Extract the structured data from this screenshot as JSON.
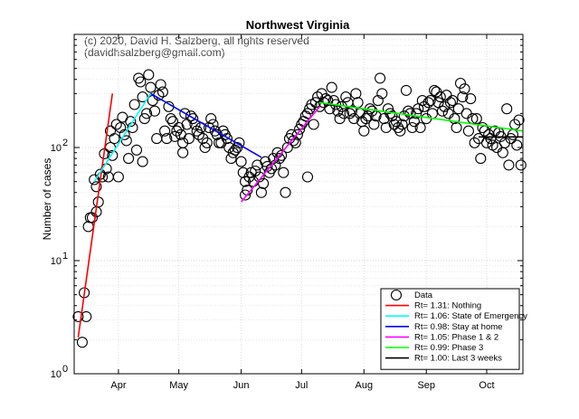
{
  "chart_data": {
    "type": "scatter",
    "title": "Northwest Virginia",
    "copyright": [
      "(c) 2020, David H. Salzberg, all rights reserved",
      "(davidhsalzberg@gmail.com)"
    ],
    "xlabel": "",
    "ylabel": "Number of cases",
    "yscale": "log",
    "ylim": [
      1,
      1000
    ],
    "xlim_day": [
      0,
      223
    ],
    "x_unit": "days since 2020-03-10",
    "grid": true,
    "legend_position": "bottom-right",
    "x_ticks": [
      {
        "day": 22,
        "label": "Apr"
      },
      {
        "day": 52,
        "label": "May"
      },
      {
        "day": 83,
        "label": "Jun"
      },
      {
        "day": 113,
        "label": "Jul"
      },
      {
        "day": 144,
        "label": "Aug"
      },
      {
        "day": 175,
        "label": "Sep"
      },
      {
        "day": 205,
        "label": "Oct"
      }
    ],
    "y_ticks": [
      {
        "value": 1,
        "label": "10",
        "exp": "0"
      },
      {
        "value": 10,
        "label": "10",
        "exp": "1"
      },
      {
        "value": 100,
        "label": "10",
        "exp": "2"
      }
    ],
    "data_label": "Data",
    "data_points": [
      [
        2,
        3.2
      ],
      [
        4,
        1.9
      ],
      [
        5,
        5.2
      ],
      [
        6,
        3.2
      ],
      [
        7,
        20
      ],
      [
        8,
        24
      ],
      [
        9,
        24
      ],
      [
        10,
        52
      ],
      [
        11,
        27
      ],
      [
        11,
        45
      ],
      [
        12,
        33
      ],
      [
        13,
        58
      ],
      [
        14,
        55
      ],
      [
        15,
        88
      ],
      [
        16,
        65
      ],
      [
        17,
        55
      ],
      [
        18,
        100
      ],
      [
        18,
        140
      ],
      [
        19,
        85
      ],
      [
        20,
        120
      ],
      [
        21,
        160
      ],
      [
        22,
        55
      ],
      [
        23,
        150
      ],
      [
        24,
        185
      ],
      [
        25,
        130
      ],
      [
        26,
        115
      ],
      [
        27,
        80
      ],
      [
        28,
        170
      ],
      [
        29,
        150
      ],
      [
        30,
        240
      ],
      [
        31,
        95
      ],
      [
        32,
        410
      ],
      [
        33,
        380
      ],
      [
        34,
        280
      ],
      [
        34,
        75
      ],
      [
        35,
        180
      ],
      [
        36,
        200
      ],
      [
        37,
        440
      ],
      [
        38,
        340
      ],
      [
        39,
        260
      ],
      [
        40,
        210
      ],
      [
        41,
        120
      ],
      [
        42,
        290
      ],
      [
        43,
        360
      ],
      [
        44,
        310
      ],
      [
        45,
        140
      ],
      [
        46,
        120
      ],
      [
        47,
        230
      ],
      [
        48,
        180
      ],
      [
        49,
        170
      ],
      [
        50,
        125
      ],
      [
        51,
        140
      ],
      [
        52,
        150
      ],
      [
        53,
        130
      ],
      [
        54,
        110
      ],
      [
        54,
        90
      ],
      [
        55,
        200
      ],
      [
        56,
        160
      ],
      [
        57,
        120
      ],
      [
        58,
        190
      ],
      [
        59,
        180
      ],
      [
        60,
        160
      ],
      [
        61,
        140
      ],
      [
        62,
        130
      ],
      [
        63,
        150
      ],
      [
        64,
        120
      ],
      [
        65,
        100
      ],
      [
        66,
        110
      ],
      [
        67,
        150
      ],
      [
        68,
        180
      ],
      [
        69,
        160
      ],
      [
        70,
        140
      ],
      [
        71,
        130
      ],
      [
        72,
        110
      ],
      [
        73,
        110
      ],
      [
        74,
        140
      ],
      [
        75,
        130
      ],
      [
        76,
        120
      ],
      [
        77,
        100
      ],
      [
        78,
        80
      ],
      [
        79,
        90
      ],
      [
        80,
        95
      ],
      [
        81,
        100
      ],
      [
        82,
        110
      ],
      [
        83,
        75
      ],
      [
        84,
        60
      ],
      [
        85,
        50
      ],
      [
        85,
        38
      ],
      [
        86,
        42
      ],
      [
        87,
        55
      ],
      [
        88,
        60
      ],
      [
        89,
        50
      ],
      [
        90,
        62
      ],
      [
        91,
        70
      ],
      [
        92,
        55
      ],
      [
        93,
        40
      ],
      [
        94,
        48
      ],
      [
        95,
        75
      ],
      [
        96,
        68
      ],
      [
        97,
        60
      ],
      [
        98,
        65
      ],
      [
        99,
        80
      ],
      [
        100,
        70
      ],
      [
        101,
        90
      ],
      [
        102,
        80
      ],
      [
        103,
        85
      ],
      [
        104,
        60
      ],
      [
        105,
        40
      ],
      [
        106,
        100
      ],
      [
        107,
        120
      ],
      [
        108,
        130
      ],
      [
        109,
        115
      ],
      [
        110,
        110
      ],
      [
        111,
        130
      ],
      [
        112,
        145
      ],
      [
        113,
        160
      ],
      [
        114,
        170
      ],
      [
        115,
        190
      ],
      [
        116,
        200
      ],
      [
        116,
        55
      ],
      [
        117,
        220
      ],
      [
        118,
        240
      ],
      [
        119,
        160
      ],
      [
        120,
        250
      ],
      [
        121,
        280
      ],
      [
        122,
        230
      ],
      [
        123,
        300
      ],
      [
        124,
        250
      ],
      [
        125,
        270
      ],
      [
        126,
        260
      ],
      [
        127,
        220
      ],
      [
        128,
        340
      ],
      [
        129,
        260
      ],
      [
        130,
        240
      ],
      [
        131,
        210
      ],
      [
        132,
        180
      ],
      [
        133,
        230
      ],
      [
        134,
        200
      ],
      [
        135,
        280
      ],
      [
        136,
        250
      ],
      [
        137,
        200
      ],
      [
        138,
        210
      ],
      [
        139,
        180
      ],
      [
        140,
        300
      ],
      [
        141,
        250
      ],
      [
        142,
        200
      ],
      [
        143,
        170
      ],
      [
        144,
        140
      ],
      [
        145,
        180
      ],
      [
        146,
        190
      ],
      [
        147,
        220
      ],
      [
        148,
        210
      ],
      [
        149,
        160
      ],
      [
        150,
        190
      ],
      [
        151,
        260
      ],
      [
        152,
        410
      ],
      [
        153,
        300
      ],
      [
        154,
        180
      ],
      [
        155,
        150
      ],
      [
        156,
        220
      ],
      [
        157,
        200
      ],
      [
        158,
        190
      ],
      [
        159,
        160
      ],
      [
        160,
        170
      ],
      [
        161,
        150
      ],
      [
        162,
        140
      ],
      [
        163,
        160
      ],
      [
        164,
        190
      ],
      [
        165,
        320
      ],
      [
        166,
        210
      ],
      [
        167,
        200
      ],
      [
        168,
        150
      ],
      [
        169,
        170
      ],
      [
        170,
        200
      ],
      [
        171,
        220
      ],
      [
        172,
        150
      ],
      [
        173,
        260
      ],
      [
        174,
        230
      ],
      [
        175,
        180
      ],
      [
        176,
        250
      ],
      [
        177,
        260
      ],
      [
        178,
        200
      ],
      [
        179,
        320
      ],
      [
        180,
        310
      ],
      [
        181,
        250
      ],
      [
        182,
        280
      ],
      [
        183,
        210
      ],
      [
        184,
        230
      ],
      [
        185,
        290
      ],
      [
        186,
        200
      ],
      [
        187,
        250
      ],
      [
        188,
        260
      ],
      [
        189,
        180
      ],
      [
        190,
        150
      ],
      [
        191,
        220
      ],
      [
        192,
        370
      ],
      [
        193,
        280
      ],
      [
        194,
        330
      ],
      [
        195,
        200
      ],
      [
        196,
        140
      ],
      [
        197,
        270
      ],
      [
        198,
        180
      ],
      [
        199,
        110
      ],
      [
        200,
        180
      ],
      [
        201,
        120
      ],
      [
        202,
        80
      ],
      [
        203,
        150
      ],
      [
        204,
        140
      ],
      [
        205,
        110
      ],
      [
        206,
        130
      ],
      [
        207,
        120
      ],
      [
        208,
        105
      ],
      [
        209,
        140
      ],
      [
        210,
        100
      ],
      [
        211,
        135
      ],
      [
        212,
        125
      ],
      [
        213,
        90
      ],
      [
        214,
        110
      ],
      [
        215,
        220
      ],
      [
        216,
        70
      ],
      [
        217,
        120
      ],
      [
        218,
        130
      ],
      [
        219,
        160
      ],
      [
        220,
        105
      ],
      [
        221,
        175
      ],
      [
        222,
        70
      ]
    ],
    "fits": [
      {
        "label": "Rt= 1.31: Nothing",
        "color": "#ff0000",
        "x": [
          2,
          19
        ],
        "y": [
          2.1,
          300
        ]
      },
      {
        "label": "Rt= 1.06: State of Emergency",
        "color": "#00ffff",
        "x": [
          10,
          38
        ],
        "y": [
          50,
          300
        ]
      },
      {
        "label": "Rt= 0.98: Stay at home",
        "color": "#0000ff",
        "x": [
          38,
          93
        ],
        "y": [
          300,
          82
        ]
      },
      {
        "label": "Rt= 1.05: Phase 1 & 2",
        "color": "#ff00ff",
        "x": [
          83,
          122
        ],
        "y": [
          33,
          230
        ]
      },
      {
        "label": "Rt= 0.99: Phase 3",
        "color": "#00ff00",
        "x": [
          122,
          223
        ],
        "y": [
          250,
          140
        ]
      },
      {
        "label": "Rt= 1.00: Last 3 weeks",
        "color": "#000000",
        "x": [
          201,
          223
        ],
        "y": [
          124,
          124
        ]
      }
    ]
  }
}
